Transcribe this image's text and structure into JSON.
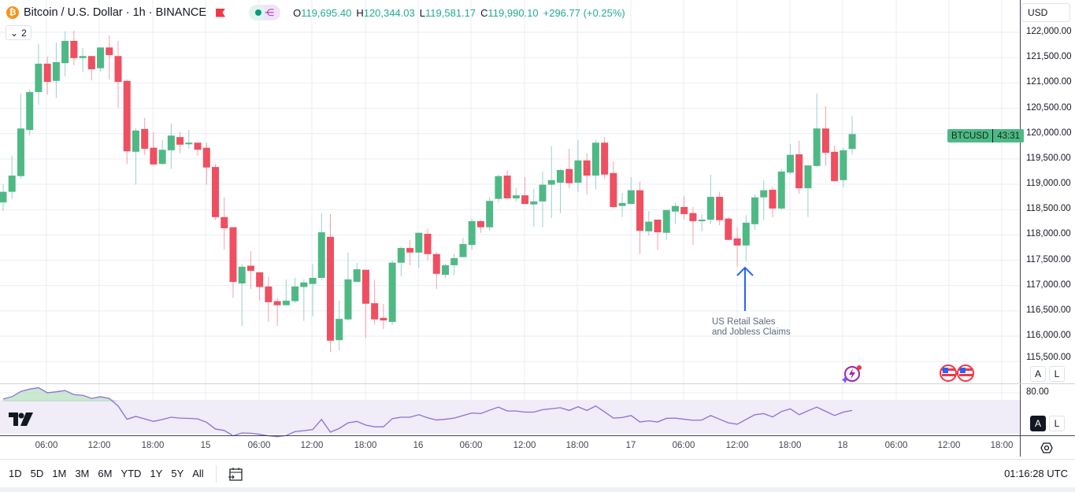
{
  "header": {
    "symbol_title": "Bitcoin / U.S. Dollar · 1h · BINANCE",
    "coin_glyph": "₿",
    "ohlc": {
      "o_label": "O",
      "o": "119,695.40",
      "h_label": "H",
      "h": "120,344.03",
      "l_label": "L",
      "l": "119,581.17",
      "c_label": "C",
      "c": "119,990.10",
      "change": "+296.77 (+0.25%)"
    },
    "collapse_label": "2",
    "currency": "USD"
  },
  "price_axis": {
    "labels": [
      "122,000.00",
      "121,500.00",
      "121,000.00",
      "120,500.00",
      "120,000.00",
      "119,500.00",
      "119,000.00",
      "118,500.00",
      "118,000.00",
      "117,500.00",
      "117,000.00",
      "116,500.00",
      "116,000.00",
      "115,500.00"
    ],
    "last_price_tag": {
      "symbol": "BTCUSD",
      "countdown": "43:31"
    },
    "auto_label": "A",
    "log_label": "L"
  },
  "rsi_axis": {
    "label": "80.00",
    "auto_label": "A",
    "log_label": "L"
  },
  "time_axis": {
    "labels": [
      "06:00",
      "12:00",
      "18:00",
      "15",
      "06:00",
      "12:00",
      "18:00",
      "16",
      "06:00",
      "12:00",
      "18:00",
      "17",
      "06:00",
      "12:00",
      "18:00",
      "18",
      "06:00",
      "12:00",
      "18:00"
    ]
  },
  "annotation": {
    "line1": "US Retail Sales",
    "line2": "and Jobless Claims"
  },
  "bottom_toolbar": {
    "ranges": [
      "1D",
      "5D",
      "1M",
      "3M",
      "6M",
      "YTD",
      "1Y",
      "5Y",
      "All"
    ],
    "clock": "01:16:28 UTC"
  },
  "colors": {
    "up": "#4fb985",
    "down": "#ef4f60",
    "rsi": "#8e6fd6",
    "rsi_band": "#f0ecf8",
    "annotation_arrow": "#2962ff"
  },
  "chart_data": {
    "type": "candlestick",
    "interval": "1h",
    "ylim": [
      115500,
      122000
    ],
    "candles": [
      [
        118640,
        119000,
        118470,
        118850
      ],
      [
        118850,
        119560,
        118710,
        119170
      ],
      [
        119160,
        120790,
        119110,
        120100
      ],
      [
        120070,
        120870,
        119960,
        120820
      ],
      [
        120820,
        121770,
        120570,
        121380
      ],
      [
        121380,
        121520,
        120770,
        121020
      ],
      [
        121040,
        121800,
        120700,
        121410
      ],
      [
        121390,
        122020,
        121130,
        121830
      ],
      [
        121830,
        122030,
        121350,
        121490
      ],
      [
        121490,
        121690,
        121210,
        121530
      ],
      [
        121530,
        121530,
        121050,
        121270
      ],
      [
        121290,
        121700,
        121220,
        121700
      ],
      [
        121700,
        121940,
        121070,
        121550
      ],
      [
        121530,
        121830,
        120510,
        121020
      ],
      [
        121040,
        121070,
        119400,
        119650
      ],
      [
        119640,
        120100,
        118990,
        120060
      ],
      [
        120090,
        120310,
        119580,
        119700
      ],
      [
        119720,
        120030,
        119390,
        119390
      ],
      [
        119400,
        119870,
        119390,
        119680
      ],
      [
        119670,
        120200,
        119300,
        119960
      ],
      [
        119930,
        120030,
        119610,
        119780
      ],
      [
        119790,
        120070,
        119700,
        119820
      ],
      [
        119820,
        119820,
        119560,
        119680
      ],
      [
        119720,
        119820,
        118990,
        119330
      ],
      [
        119340,
        119400,
        118290,
        118350
      ],
      [
        118350,
        118740,
        117710,
        118130
      ],
      [
        118150,
        118150,
        116760,
        117070
      ],
      [
        117040,
        117430,
        116200,
        117370
      ],
      [
        117390,
        117680,
        116930,
        117290
      ],
      [
        117260,
        117260,
        116700,
        116970
      ],
      [
        116980,
        117170,
        116280,
        116670
      ],
      [
        116690,
        116760,
        116200,
        116610
      ],
      [
        116610,
        117120,
        116610,
        116700
      ],
      [
        116690,
        117150,
        116650,
        116980
      ],
      [
        116970,
        117120,
        116300,
        117060
      ],
      [
        117030,
        117420,
        116390,
        117150
      ],
      [
        117150,
        118430,
        117100,
        118050
      ],
      [
        117960,
        118410,
        115690,
        115910
      ],
      [
        115920,
        116700,
        115720,
        116340
      ],
      [
        116330,
        117650,
        116300,
        117120
      ],
      [
        117070,
        117450,
        117070,
        117320
      ],
      [
        117310,
        117310,
        115960,
        116640
      ],
      [
        116650,
        117120,
        116230,
        116330
      ],
      [
        116360,
        116640,
        116140,
        116310
      ],
      [
        116280,
        117490,
        116220,
        117450
      ],
      [
        117450,
        117770,
        117180,
        117740
      ],
      [
        117740,
        117900,
        117400,
        117650
      ],
      [
        117650,
        118050,
        117340,
        118040
      ],
      [
        118020,
        118120,
        117490,
        117620
      ],
      [
        117620,
        117660,
        116930,
        117230
      ],
      [
        117210,
        117430,
        117140,
        117400
      ],
      [
        117400,
        117630,
        117200,
        117540
      ],
      [
        117560,
        117940,
        117560,
        117820
      ],
      [
        117800,
        118320,
        117710,
        118270
      ],
      [
        118270,
        118290,
        118040,
        118150
      ],
      [
        118150,
        118750,
        118080,
        118670
      ],
      [
        118710,
        119190,
        118640,
        119160
      ],
      [
        119170,
        119270,
        118720,
        118720
      ],
      [
        118720,
        118920,
        118660,
        118780
      ],
      [
        118780,
        119140,
        118610,
        118610
      ],
      [
        118600,
        118910,
        118160,
        118660
      ],
      [
        118660,
        119250,
        118150,
        118990
      ],
      [
        118990,
        119750,
        118330,
        119080
      ],
      [
        119030,
        119300,
        118430,
        119280
      ],
      [
        119300,
        119700,
        118920,
        119020
      ],
      [
        119030,
        119870,
        118850,
        119470
      ],
      [
        119470,
        119610,
        118800,
        119170
      ],
      [
        119170,
        119870,
        118890,
        119820
      ],
      [
        119820,
        119930,
        119110,
        119190
      ],
      [
        119220,
        119450,
        118540,
        118550
      ],
      [
        118570,
        118830,
        118350,
        118630
      ],
      [
        118610,
        119140,
        118600,
        118880
      ],
      [
        118880,
        119050,
        117620,
        118080
      ],
      [
        118070,
        118470,
        117980,
        118260
      ],
      [
        118300,
        118300,
        117700,
        118050
      ],
      [
        118040,
        118490,
        117900,
        118490
      ],
      [
        118460,
        118630,
        118210,
        118570
      ],
      [
        118550,
        118770,
        118300,
        118410
      ],
      [
        118430,
        118550,
        117800,
        118270
      ],
      [
        118290,
        118410,
        118070,
        118300
      ],
      [
        118300,
        119190,
        118210,
        118750
      ],
      [
        118750,
        118850,
        118190,
        118290
      ],
      [
        118320,
        118350,
        117900,
        117900
      ],
      [
        117930,
        118150,
        117370,
        117790
      ],
      [
        117790,
        118390,
        117480,
        118240
      ],
      [
        118210,
        118800,
        118100,
        118740
      ],
      [
        118740,
        119080,
        118290,
        118880
      ],
      [
        118890,
        118950,
        118350,
        118520
      ],
      [
        118520,
        119300,
        118490,
        119250
      ],
      [
        119230,
        119790,
        119200,
        119580
      ],
      [
        119590,
        119860,
        118810,
        118920
      ],
      [
        118920,
        119390,
        118350,
        119370
      ],
      [
        119360,
        120790,
        119340,
        120100
      ],
      [
        120100,
        120540,
        119360,
        119620
      ],
      [
        119640,
        119760,
        119060,
        119060
      ],
      [
        119080,
        119720,
        118940,
        119670
      ],
      [
        119695.4,
        120344.03,
        119581.17,
        119990.1
      ]
    ],
    "rsi": {
      "ylim": [
        20,
        90
      ],
      "upper": 70,
      "lower": 30,
      "values": [
        73.1,
        75.9,
        82.5,
        85.3,
        87.1,
        80.8,
        82,
        83.6,
        78.4,
        77.7,
        73.8,
        75.9,
        73.8,
        64.4,
        48,
        51.5,
        48.4,
        45.3,
        47.7,
        50.5,
        49.4,
        49,
        48.4,
        44.2,
        35.9,
        34.1,
        27.5,
        31,
        30.6,
        29.2,
        27.5,
        26.4,
        27.8,
        32.7,
        33.8,
        35.2,
        47.7,
        32,
        36.6,
        43.5,
        45.3,
        40.7,
        38.6,
        38.6,
        48.7,
        50.5,
        50.5,
        53.6,
        49.8,
        47,
        48,
        49.4,
        52.6,
        55.7,
        55,
        59.2,
        63,
        58.2,
        58.2,
        56.8,
        56.8,
        59.9,
        61,
        62.3,
        58.9,
        63.4,
        58.9,
        64.4,
        57.1,
        49.4,
        50.1,
        52.6,
        44.6,
        46,
        44.6,
        49.1,
        49.4,
        48,
        46.7,
        47,
        52.6,
        48,
        43.5,
        41.8,
        47.7,
        53.6,
        55,
        50.8,
        57.5,
        60.9,
        53.6,
        58.5,
        63,
        57.8,
        52.6,
        56.8,
        58.9
      ]
    }
  }
}
